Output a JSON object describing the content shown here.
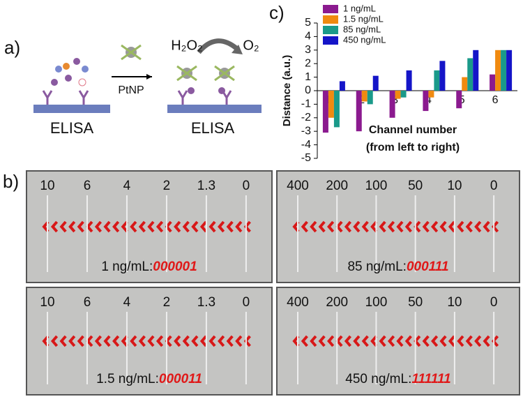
{
  "panel_a": {
    "label": "a)",
    "left_caption": "ELISA",
    "arrow_label": "PtNP",
    "reactant": "H₂O₂",
    "product": "O₂",
    "right_caption": "ELISA"
  },
  "panel_b": {
    "label": "b)",
    "photos": [
      {
        "channels": [
          "10",
          "6",
          "4",
          "2",
          "1.3",
          "0"
        ],
        "caption": "1 ng/mL:",
        "code": "000001"
      },
      {
        "channels": [
          "400",
          "200",
          "100",
          "50",
          "10",
          "0"
        ],
        "caption": "85 ng/mL:",
        "code": "000111"
      },
      {
        "channels": [
          "10",
          "6",
          "4",
          "2",
          "1.3",
          "0"
        ],
        "caption": "1.5 ng/mL:",
        "code": "000011"
      },
      {
        "channels": [
          "400",
          "200",
          "100",
          "50",
          "10",
          "0"
        ],
        "caption": "450 ng/mL:",
        "code": "111111"
      }
    ]
  },
  "chart_data": {
    "type": "bar",
    "panel_label": "c)",
    "ylabel": "Distance (a.u.)",
    "xlabel": "Channel number",
    "xlabel_sub": "(from left to right)",
    "categories": [
      "1",
      "2",
      "3",
      "4",
      "5",
      "6"
    ],
    "series": [
      {
        "name": "1 ng/mL",
        "color": "#8b1a8f",
        "values": [
          -3.1,
          -3.0,
          -2.0,
          -1.5,
          -1.3,
          1.2
        ]
      },
      {
        "name": "1.5 ng/mL",
        "color": "#f08a10",
        "values": [
          -2.0,
          -0.8,
          -0.6,
          -0.5,
          1.0,
          3.0
        ]
      },
      {
        "name": "85 ng/mL",
        "color": "#1a9a8a",
        "values": [
          -2.7,
          -1.0,
          -0.5,
          1.5,
          2.4,
          3.0
        ]
      },
      {
        "name": "450 ng/mL",
        "color": "#1515c8",
        "values": [
          0.7,
          1.1,
          1.5,
          2.2,
          3.0,
          3.0
        ]
      }
    ],
    "ylim": [
      -5,
      5
    ],
    "yticks": [
      -5,
      -4,
      -3,
      -2,
      -1,
      0,
      1,
      2,
      3,
      4,
      5
    ]
  }
}
